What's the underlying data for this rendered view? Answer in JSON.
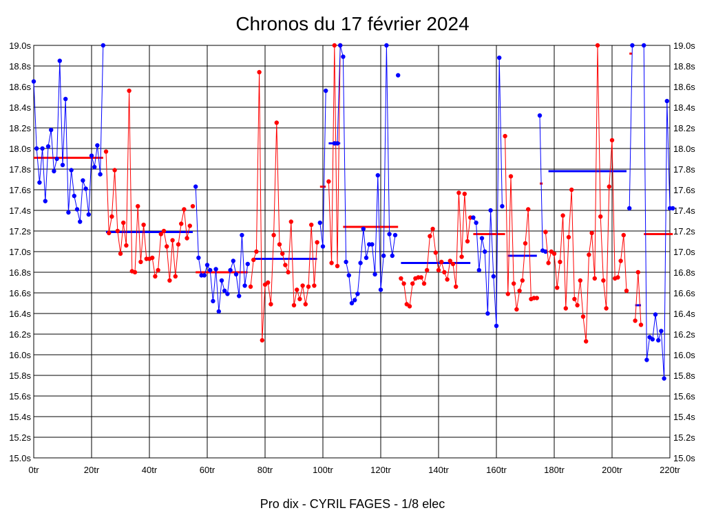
{
  "chart_data": {
    "type": "line",
    "title": "Chronos du 17 février 2024",
    "subtitle": "Pro dix - CYRIL FAGES - 1/8 elec",
    "xlabel": "",
    "ylabel": "",
    "xlim": [
      0,
      220
    ],
    "ylim": [
      15.0,
      19.0
    ],
    "grid": true,
    "x_ticks": [
      0,
      20,
      40,
      60,
      80,
      100,
      120,
      140,
      160,
      180,
      200,
      220
    ],
    "x_tick_labels": [
      "0tr",
      "20tr",
      "40tr",
      "60tr",
      "80tr",
      "100tr",
      "120tr",
      "140tr",
      "160tr",
      "180tr",
      "200tr",
      "220tr"
    ],
    "y_ticks": [
      15.0,
      15.2,
      15.4,
      15.6,
      15.8,
      16.0,
      16.2,
      16.4,
      16.6,
      16.8,
      17.0,
      17.2,
      17.4,
      17.6,
      17.8,
      18.0,
      18.2,
      18.4,
      18.6,
      18.8,
      19.0
    ],
    "y_tick_labels": [
      "15.0s",
      "15.2s",
      "15.4s",
      "15.6s",
      "15.8s",
      "16.0s",
      "16.2s",
      "16.4s",
      "16.6s",
      "16.8s",
      "17.0s",
      "17.2s",
      "17.4s",
      "17.6s",
      "17.8s",
      "18.0s",
      "18.2s",
      "18.4s",
      "18.6s",
      "18.8s",
      "19.0s"
    ],
    "colors": {
      "blue": "#0000ff",
      "red": "#ff0000"
    },
    "series": [
      {
        "color": "blue",
        "x": [
          0,
          1,
          2,
          3,
          4,
          5,
          6,
          7,
          8,
          9,
          10,
          11,
          12,
          13,
          14,
          15,
          16,
          17,
          18,
          19,
          20,
          21,
          22,
          23,
          24
        ],
        "y": [
          18.65,
          18.0,
          17.67,
          18.0,
          17.49,
          18.02,
          18.18,
          17.78,
          17.9,
          18.85,
          17.84,
          18.48,
          17.38,
          17.79,
          17.54,
          17.41,
          17.29,
          17.69,
          17.61,
          17.36,
          17.93,
          17.82,
          18.03,
          17.75,
          19.0
        ],
        "avg": 17.91,
        "avg_color": "red",
        "avg_x": [
          0,
          24
        ]
      },
      {
        "color": "red",
        "x": [
          25,
          26,
          27,
          28,
          29,
          30,
          31,
          32,
          33,
          34,
          35,
          36,
          37,
          38,
          39,
          40,
          41,
          42,
          43,
          44,
          45,
          46,
          47,
          48,
          49,
          50,
          51,
          52,
          53,
          54
        ],
        "y": [
          17.97,
          17.18,
          17.34,
          17.79,
          17.2,
          16.98,
          17.28,
          17.06,
          18.56,
          16.81,
          16.8,
          17.44,
          16.9,
          17.26,
          16.93,
          16.93,
          16.94,
          16.76,
          16.82,
          17.17,
          17.2,
          17.05,
          16.72,
          17.11,
          16.76,
          17.07,
          17.27,
          17.41,
          17.13,
          17.25
        ],
        "avg": 17.19,
        "avg_color": "blue",
        "avg_x": [
          25,
          55
        ]
      },
      {
        "color": "red",
        "x": [
          55
        ],
        "y": [
          17.44
        ],
        "avg": null
      },
      {
        "color": "blue",
        "x": [
          56,
          57,
          58,
          59,
          60,
          61,
          62,
          63,
          64,
          65,
          66,
          67,
          68,
          69,
          70,
          71,
          72,
          73,
          74
        ],
        "y": [
          17.63,
          16.94,
          16.77,
          16.77,
          16.87,
          16.82,
          16.52,
          16.83,
          16.42,
          16.72,
          16.62,
          16.59,
          16.82,
          16.91,
          16.78,
          16.57,
          17.16,
          16.67,
          16.88
        ],
        "avg": 16.8,
        "avg_color": "red",
        "avg_x": [
          56,
          74
        ]
      },
      {
        "color": "red",
        "x": [
          75,
          76,
          77,
          78,
          79,
          80,
          81,
          82,
          83,
          84,
          85,
          86,
          87,
          88,
          89,
          90,
          91,
          92,
          93,
          94,
          95,
          96,
          97,
          98
        ],
        "y": [
          16.66,
          16.92,
          17.0,
          18.74,
          16.14,
          16.68,
          16.7,
          16.49,
          17.16,
          18.25,
          17.07,
          16.98,
          16.87,
          16.8,
          17.29,
          16.48,
          16.63,
          16.54,
          16.67,
          16.49,
          16.66,
          17.26,
          16.67,
          17.09
        ],
        "avg": 16.93,
        "avg_color": "blue",
        "avg_x": [
          76,
          98
        ]
      },
      {
        "color": "blue",
        "x": [
          99,
          100,
          101
        ],
        "y": [
          17.28,
          17.05,
          18.56
        ],
        "avg": null
      },
      {
        "color": "red",
        "x": [
          102,
          103,
          104,
          105,
          106
        ],
        "y": [
          17.68,
          16.89,
          19.0,
          16.86,
          19.0
        ],
        "avg": 17.63,
        "avg_color": "red",
        "avg_x": [
          99,
          101
        ]
      },
      {
        "color": "blue",
        "x": [
          104,
          105,
          106,
          107,
          108,
          109,
          110,
          111,
          112,
          113,
          114,
          115,
          116,
          117,
          118,
          119,
          120,
          121,
          122,
          123,
          124,
          125
        ],
        "y": [
          18.05,
          18.05,
          19.0,
          18.89,
          16.9,
          16.77,
          16.5,
          16.53,
          16.59,
          16.89,
          17.22,
          16.94,
          17.07,
          17.07,
          16.78,
          17.74,
          16.63,
          16.96,
          19.0,
          17.17,
          16.96,
          17.16
        ],
        "avg": 18.05,
        "avg_color": "blue",
        "avg_x": [
          102,
          106
        ]
      },
      {
        "color": "blue",
        "x": [
          126
        ],
        "y": [
          18.71
        ],
        "avg": 17.24,
        "avg_color": "red",
        "avg_x": [
          107,
          126
        ]
      },
      {
        "color": "red",
        "x": [
          127,
          128,
          129,
          130,
          131,
          132,
          133,
          134,
          135,
          136,
          137,
          138,
          139,
          140,
          141,
          142,
          143,
          144,
          145,
          146,
          147,
          148,
          149,
          150,
          151
        ],
        "y": [
          16.74,
          16.69,
          16.49,
          16.47,
          16.69,
          16.74,
          16.75,
          16.75,
          16.69,
          16.82,
          17.15,
          17.22,
          16.99,
          16.82,
          16.9,
          16.8,
          16.73,
          16.91,
          16.88,
          16.66,
          17.57,
          16.95,
          17.56,
          17.1,
          17.33
        ],
        "avg": 16.89,
        "avg_color": "blue",
        "avg_x": [
          127,
          151
        ]
      },
      {
        "color": "blue",
        "x": [
          152,
          153,
          154,
          155,
          156,
          157,
          158,
          159,
          160,
          161,
          162
        ],
        "y": [
          17.33,
          17.28,
          16.82,
          17.13,
          17.0,
          16.4,
          17.4,
          16.76,
          16.28,
          18.88,
          17.44
        ],
        "avg": 17.17,
        "avg_color": "red",
        "avg_x": [
          152,
          163
        ]
      },
      {
        "color": "red",
        "x": [
          163,
          164,
          165,
          166,
          167,
          168,
          169,
          170,
          171,
          172,
          173,
          174
        ],
        "y": [
          18.12,
          16.59,
          17.73,
          16.69,
          16.44,
          16.62,
          16.72,
          17.08,
          17.41,
          16.54,
          16.55,
          16.55
        ],
        "avg": 16.96,
        "avg_color": "blue",
        "avg_x": [
          164,
          174
        ]
      },
      {
        "color": "blue",
        "x": [
          175,
          176,
          177
        ],
        "y": [
          18.32,
          17.01,
          17.0
        ],
        "avg": 17.66,
        "avg_color": "red",
        "avg_x": [
          175,
          176
        ]
      },
      {
        "color": "red",
        "x": [
          177,
          178,
          179,
          180,
          181,
          182,
          183,
          184,
          185,
          186,
          187,
          188,
          189,
          190,
          191,
          192,
          193,
          194,
          195,
          196,
          197,
          198,
          199,
          200,
          201,
          202,
          203,
          204,
          205
        ],
        "y": [
          17.19,
          16.89,
          17.0,
          16.98,
          16.65,
          16.9,
          17.35,
          16.45,
          17.14,
          17.6,
          16.54,
          16.48,
          16.72,
          16.37,
          16.13,
          16.97,
          17.18,
          16.74,
          19.0,
          17.34,
          16.72,
          16.45,
          17.63,
          18.08,
          16.74,
          16.75,
          16.91,
          17.16,
          16.62
        ],
        "avg": 17.78,
        "avg_color": "blue",
        "avg_x": [
          178,
          205
        ]
      },
      {
        "color": "blue",
        "x": [
          206,
          207
        ],
        "y": [
          17.42,
          19.0
        ],
        "avg": 18.92,
        "avg_color": "red",
        "avg_x": [
          206,
          207
        ]
      },
      {
        "color": "red",
        "x": [
          208,
          209,
          210
        ],
        "y": [
          16.33,
          16.8,
          16.29
        ],
        "avg": 16.48,
        "avg_color": "blue",
        "avg_x": [
          208,
          210
        ]
      },
      {
        "color": "blue",
        "x": [
          211,
          212,
          213,
          214,
          215,
          216,
          217,
          218,
          219,
          220,
          221
        ],
        "y": [
          19.0,
          15.95,
          16.17,
          16.15,
          16.39,
          16.14,
          16.23,
          15.77,
          18.46,
          17.42,
          17.42
        ],
        "avg": 17.17,
        "avg_color": "red",
        "avg_x": [
          211,
          221
        ]
      }
    ]
  }
}
